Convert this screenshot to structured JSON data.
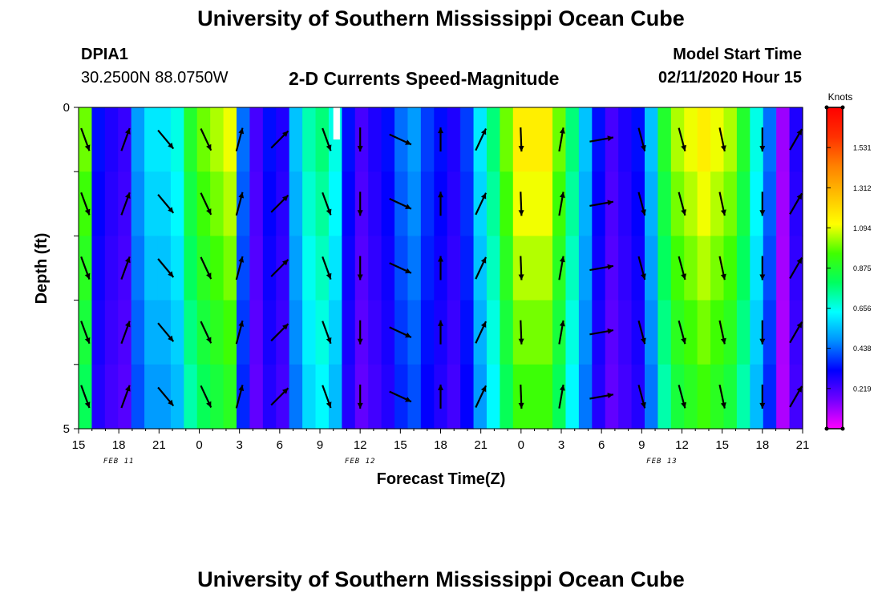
{
  "header": {
    "title": "University of Southern Mississippi Ocean Cube",
    "station_id": "DPIA1",
    "coordinates": "30.2500N 88.0750W",
    "subtitle": "2-D Currents Speed-Magnitude",
    "model_start_label": "Model Start Time",
    "model_start_value": "02/11/2020 Hour 15"
  },
  "footer": {
    "title": "University of Southern Mississippi Ocean Cube"
  },
  "chart_data": {
    "type": "heatmap",
    "title": "2-D Currents Speed-Magnitude",
    "xlabel": "Forecast Time(Z)",
    "ylabel": "Depth (ft)",
    "x_ticks": [
      "15",
      "18",
      "21",
      "0",
      "3",
      "6",
      "9",
      "12",
      "15",
      "18",
      "21",
      "0",
      "3",
      "6",
      "9",
      "12",
      "15",
      "18",
      "21"
    ],
    "x_range_hours": [
      0,
      54
    ],
    "date_labels": [
      {
        "label": "FEB 11",
        "hour": 3
      },
      {
        "label": "FEB 12",
        "hour": 21
      },
      {
        "label": "FEB 13",
        "hour": 43.5
      }
    ],
    "y_ticks": [
      "0",
      "",
      "",
      "",
      "",
      "5"
    ],
    "ylim": [
      0,
      5
    ],
    "colorbar": {
      "unit": "Knots",
      "min": 0,
      "max": 1.75,
      "ticks": [
        "1.531",
        "1.312",
        "1.094",
        "0.875",
        "0.656",
        "0.438",
        "0.219"
      ],
      "tick_values": [
        1.531,
        1.312,
        1.094,
        0.875,
        0.656,
        0.438,
        0.219
      ],
      "colors": [
        "#ff00ff",
        "#7000ff",
        "#0000ff",
        "#0090ff",
        "#00ffff",
        "#00ff60",
        "#40ff00",
        "#ffff00",
        "#ffc000",
        "#ff8000",
        "#ff3000",
        "#ff0000"
      ]
    },
    "missing_cell": {
      "hour": 19,
      "depth_band": 0
    },
    "speed_hourly": [
      0.9,
      0.3,
      0.25,
      0.22,
      0.45,
      0.55,
      0.55,
      0.6,
      0.8,
      0.9,
      0.95,
      1.0,
      0.4,
      0.2,
      0.3,
      0.25,
      0.5,
      0.65,
      0.7,
      0.6,
      0.3,
      0.2,
      0.25,
      0.3,
      0.4,
      0.45,
      0.35,
      0.3,
      0.25,
      0.35,
      0.55,
      0.7,
      0.9,
      1.05,
      1.05,
      1.05,
      0.9,
      0.7,
      0.5,
      0.3,
      0.2,
      0.25,
      0.3,
      0.5,
      0.8,
      0.95,
      1.0,
      1.05,
      1.0,
      0.95,
      0.8,
      0.6,
      0.4,
      0.1,
      0.25
    ],
    "depth_factors": [
      1.1,
      1.05,
      1.0,
      0.95,
      0.9
    ],
    "arrows": [
      {
        "hour": 0.5,
        "dir_deg": 160
      },
      {
        "hour": 3.5,
        "dir_deg": 20
      },
      {
        "hour": 6.5,
        "dir_deg": 140
      },
      {
        "hour": 9.5,
        "dir_deg": 155
      },
      {
        "hour": 12.0,
        "dir_deg": 15
      },
      {
        "hour": 15.0,
        "dir_deg": 45
      },
      {
        "hour": 18.5,
        "dir_deg": 160
      },
      {
        "hour": 21.0,
        "dir_deg": 180
      },
      {
        "hour": 24.0,
        "dir_deg": 115
      },
      {
        "hour": 27.0,
        "dir_deg": 0
      },
      {
        "hour": 30.0,
        "dir_deg": 25
      },
      {
        "hour": 33.0,
        "dir_deg": 178
      },
      {
        "hour": 36.0,
        "dir_deg": 10
      },
      {
        "hour": 39.0,
        "dir_deg": 80
      },
      {
        "hour": 42.0,
        "dir_deg": 165
      },
      {
        "hour": 45.0,
        "dir_deg": 165
      },
      {
        "hour": 48.0,
        "dir_deg": 168
      },
      {
        "hour": 51.0,
        "dir_deg": 180
      },
      {
        "hour": 53.5,
        "dir_deg": 30
      }
    ]
  }
}
